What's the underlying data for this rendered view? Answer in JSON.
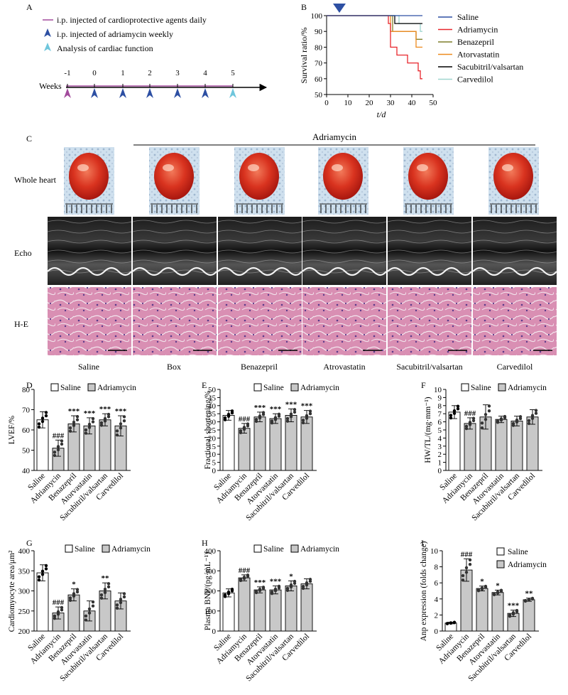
{
  "panel_labels": {
    "a": "A",
    "b": "B",
    "c": "C",
    "d": "D",
    "e": "E",
    "f": "F",
    "g": "G",
    "h": "H",
    "i": "I"
  },
  "legend_a": {
    "line": "i.p. injected of cardioprotective agents daily",
    "blue_arrow": "i.p. injected of adriamycin weekly",
    "cyan_arrow": "Analysis of cardiac function"
  },
  "timeline": {
    "label": "Weeks",
    "ticks": [
      "-1",
      "0",
      "1",
      "2",
      "3",
      "4",
      "5"
    ]
  },
  "colors": {
    "saline": "#2d4fa3",
    "adriamycin": "#e8262c",
    "benazepril": "#7f7f2a",
    "atorvastatin": "#ee8a1e",
    "sacubitril": "#000000",
    "carvedilol": "#9fd6cf",
    "purple": "#a24a9c",
    "cyan": "#6fc6dc",
    "bar_gray": "#c8c8c8"
  },
  "survival": {
    "ylabel": "Survival ratio/%",
    "xlabel": "t/d",
    "xticks": [
      "0",
      "10",
      "20",
      "30",
      "40",
      "50"
    ],
    "yticks": [
      "50",
      "60",
      "70",
      "80",
      "90",
      "100"
    ],
    "legend": [
      "Saline",
      "Adriamycin",
      "Benazepril",
      "Atorvastatin",
      "Sacubitril/valsartan",
      "Carvedilol"
    ]
  },
  "panel_c": {
    "header": "Adriamycin",
    "rows": [
      "Whole heart",
      "Echo",
      "H-E"
    ],
    "groups": [
      "Saline",
      "Box",
      "Benazepril",
      "Atrovastatin",
      "Sacubitril/valsartan",
      "Carvedilol"
    ]
  },
  "bar_legend": {
    "saline": "Saline",
    "adriamycin": "Adriamycin"
  },
  "group_labels": [
    "Saline",
    "Adriamycin",
    "Benazepril",
    "Atorvastatin",
    "Sacubitril/valsartan",
    "Carvedilol"
  ],
  "chart_data": [
    {
      "panel": "B",
      "type": "line",
      "title": "",
      "xlabel": "t/d",
      "ylabel": "Survival ratio/%",
      "xlim": [
        0,
        50
      ],
      "ylim": [
        50,
        100
      ],
      "series": [
        {
          "name": "Saline",
          "x": [
            0,
            45
          ],
          "y": [
            100,
            100
          ]
        },
        {
          "name": "Adriamycin",
          "x": [
            0,
            28,
            29,
            30,
            33,
            38,
            43,
            44,
            45
          ],
          "y": [
            100,
            100,
            95,
            80,
            75,
            70,
            65,
            60,
            60
          ]
        },
        {
          "name": "Benazepril",
          "x": [
            0,
            30,
            31,
            42,
            45
          ],
          "y": [
            100,
            100,
            90,
            85,
            85
          ]
        },
        {
          "name": "Atorvastatin",
          "x": [
            0,
            29,
            30,
            42,
            45
          ],
          "y": [
            100,
            100,
            90,
            80,
            80
          ]
        },
        {
          "name": "Sacubitril/valsartan",
          "x": [
            0,
            31,
            32,
            45
          ],
          "y": [
            100,
            100,
            95,
            95
          ]
        },
        {
          "name": "Carvedilol",
          "x": [
            0,
            33,
            34,
            44,
            45
          ],
          "y": [
            100,
            100,
            95,
            90,
            90
          ]
        }
      ]
    },
    {
      "panel": "D",
      "type": "bar",
      "ylabel": "LVEF/%",
      "ylim": [
        40,
        80
      ],
      "yticks": [
        "40",
        "50",
        "60",
        "70",
        "80"
      ],
      "values": [
        65,
        51,
        63,
        62,
        65,
        62
      ],
      "errors": [
        4,
        4,
        4,
        4,
        3,
        5
      ],
      "annotations": [
        "",
        "###",
        "***",
        "***",
        "***",
        "***"
      ]
    },
    {
      "panel": "E",
      "type": "bar",
      "ylabel": "Fractional shortening/%",
      "ylim": [
        0,
        50
      ],
      "yticks": [
        "0",
        "5",
        "10",
        "15",
        "20",
        "25",
        "30",
        "35",
        "40",
        "45",
        "50"
      ],
      "values": [
        34,
        26,
        33,
        32,
        34,
        33
      ],
      "errors": [
        3,
        3,
        3,
        3,
        4,
        4
      ],
      "annotations": [
        "",
        "###",
        "***",
        "***",
        "***",
        "***"
      ]
    },
    {
      "panel": "F",
      "type": "bar",
      "ylabel": "HW/TL/(mg·mm⁻¹)",
      "ylim": [
        0,
        10
      ],
      "yticks": [
        "0",
        "1",
        "2",
        "3",
        "4",
        "5",
        "6",
        "7",
        "8",
        "9",
        "10"
      ],
      "values": [
        7.2,
        5.8,
        6.6,
        6.3,
        6.1,
        6.6
      ],
      "errors": [
        0.8,
        0.7,
        1.5,
        0.4,
        0.6,
        0.9
      ],
      "annotations": [
        "",
        "###",
        "",
        "",
        "",
        ""
      ]
    },
    {
      "panel": "G",
      "type": "bar",
      "ylabel": "Cardiomyocyte area/μm²",
      "ylim": [
        200,
        400
      ],
      "yticks": [
        "200",
        "250",
        "300",
        "350",
        "400"
      ],
      "values": [
        345,
        245,
        290,
        250,
        300,
        275
      ],
      "errors": [
        20,
        15,
        15,
        25,
        20,
        20
      ],
      "annotations": [
        "",
        "###",
        "*",
        "",
        "**",
        ""
      ]
    },
    {
      "panel": "H",
      "type": "bar",
      "ylabel": "Plasma BNP/(pg·mL⁻¹)",
      "ylim": [
        0,
        400
      ],
      "yticks": [
        "0",
        "100",
        "200",
        "300",
        "400"
      ],
      "values": [
        190,
        265,
        205,
        205,
        225,
        235
      ],
      "errors": [
        20,
        15,
        15,
        20,
        25,
        25
      ],
      "annotations": [
        "",
        "###",
        "***",
        "***",
        "*",
        ""
      ]
    },
    {
      "panel": "I",
      "type": "bar",
      "ylabel": "Anp expression (folds change)",
      "ylim": [
        0,
        10
      ],
      "yticks": [
        "0",
        "2",
        "4",
        "6",
        "8",
        "10"
      ],
      "values": [
        1.0,
        7.6,
        5.3,
        4.8,
        2.2,
        3.9
      ],
      "errors": [
        0.1,
        1.4,
        0.3,
        0.3,
        0.4,
        0.2
      ],
      "annotations": [
        "",
        "###",
        "*",
        "*",
        "***",
        "**"
      ]
    }
  ]
}
